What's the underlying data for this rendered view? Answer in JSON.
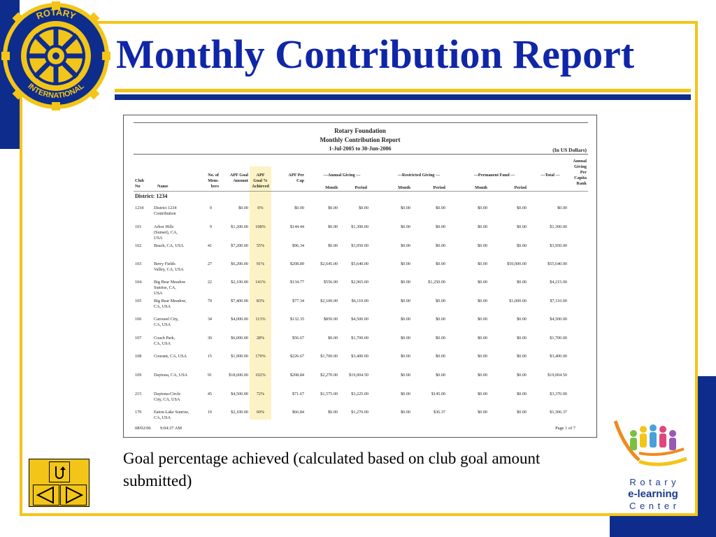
{
  "title": "Monthly Contribution Report",
  "logo_top_text": "ROTARY",
  "logo_bottom_text": "INTERNATIONAL",
  "report": {
    "org": "Rotary Foundation",
    "name": "Monthly Contribution Report",
    "period": "1-Jul-2005 to 30-Jun-2006",
    "currency": "(In US Dollars)",
    "headers": {
      "club_no": "Club\nNo",
      "name": "Name",
      "members": "No. of\nMem-\nbers",
      "goal_amount": "APF Goal\nAmount",
      "goal_pct": "APF\nGoal %\nAchieved",
      "per_cap": "APF Per\nCap",
      "annual_giving": "---Annual Giving ---",
      "restricted_giving": "---Restricted Giving ---",
      "permanent_fund": "---Permanent Fund ---",
      "total": "---Total ---",
      "rank": "Annual\nGiving\nPer\nCapita\nRank",
      "month": "Month",
      "period": "Period"
    },
    "district": "District: 1234",
    "rows": [
      {
        "no": "1234",
        "name": "District 1234\nContribution",
        "members": "0",
        "goal": "$0.00",
        "pct": "0%",
        "percap": "$0.00",
        "ag_m": "$0.00",
        "ag_p": "$0.00",
        "rg_m": "$0.00",
        "rg_p": "$0.00",
        "pf_m": "$0.00",
        "pf_p": "$0.00",
        "total": "$0.00"
      },
      {
        "no": "101",
        "name": "Arbor Hills\n(Sunset), CA,\nUSA",
        "members": "9",
        "goal": "$1,200.00",
        "pct": "108%",
        "percap": "$144.44",
        "ag_m": "$0.00",
        "ag_p": "$1,300.00",
        "rg_m": "$0.00",
        "rg_p": "$0.00",
        "pf_m": "$0.00",
        "pf_p": "$0.00",
        "total": "$1,300.00"
      },
      {
        "no": "102",
        "name": "Beach, CA, USA",
        "members": "41",
        "goal": "$7,200.00",
        "pct": "55%",
        "percap": "$96.34",
        "ag_m": "$0.00",
        "ag_p": "$3,950.00",
        "rg_m": "$0.00",
        "rg_p": "$0.00",
        "pf_m": "$0.00",
        "pf_p": "$0.00",
        "total": "$3,950.00"
      },
      {
        "no": "103",
        "name": "Berry Fields\nValley, CA, USA",
        "members": "27",
        "goal": "$6,200.00",
        "pct": "91%",
        "percap": "$208.89",
        "ag_m": "$2,645.00",
        "ag_p": "$5,640.00",
        "rg_m": "$0.00",
        "rg_p": "$0.00",
        "pf_m": "$0.00",
        "pf_p": "$50,000.00",
        "total": "$55,640.00"
      },
      {
        "no": "104",
        "name": "Big Bear Meadow\nSunrise, CA,\nUSA",
        "members": "22",
        "goal": "$2,100.00",
        "pct": "141%",
        "percap": "$134.77",
        "ag_m": "$556.00",
        "ag_p": "$2,965.00",
        "rg_m": "$0.00",
        "rg_p": "$1,250.00",
        "pf_m": "$0.00",
        "pf_p": "$0.00",
        "total": "$4,215.00"
      },
      {
        "no": "105",
        "name": "Big Bear Meadow,\nCA, USA",
        "members": "79",
        "goal": "$7,400.00",
        "pct": "83%",
        "percap": "$77.34",
        "ag_m": "$2,100.00",
        "ag_p": "$6,110.00",
        "rg_m": "$0.00",
        "rg_p": "$0.00",
        "pf_m": "$0.00",
        "pf_p": "$1,000.00",
        "total": "$7,110.00"
      },
      {
        "no": "106",
        "name": "Carousel City,\nCA, USA",
        "members": "34",
        "goal": "$4,000.00",
        "pct": "113%",
        "percap": "$132.35",
        "ag_m": "$850.00",
        "ag_p": "$4,500.00",
        "rg_m": "$0.00",
        "rg_p": "$0.00",
        "pf_m": "$0.00",
        "pf_p": "$0.00",
        "total": "$4,500.00"
      },
      {
        "no": "107",
        "name": "Coach Park,\nCA, USA",
        "members": "30",
        "goal": "$6,000.00",
        "pct": "28%",
        "percap": "$56.67",
        "ag_m": "$0.00",
        "ag_p": "$1,700.00",
        "rg_m": "$0.00",
        "rg_p": "$0.00",
        "pf_m": "$0.00",
        "pf_p": "$0.00",
        "total": "$1,700.00"
      },
      {
        "no": "108",
        "name": "Courant, CA, USA",
        "members": "15",
        "goal": "$1,900.00",
        "pct": "179%",
        "percap": "$226.67",
        "ag_m": "$1,700.00",
        "ag_p": "$3,400.00",
        "rg_m": "$0.00",
        "rg_p": "$0.00",
        "pf_m": "$0.00",
        "pf_p": "$0.00",
        "total": "$3,400.00"
      },
      {
        "no": "109",
        "name": "Daytona, CA, USA",
        "members": "91",
        "goal": "$18,600.00",
        "pct": "102%",
        "percap": "$208.84",
        "ag_m": "$2,270.00",
        "ag_p": "$19,004.50",
        "rg_m": "$0.00",
        "rg_p": "$0.00",
        "pf_m": "$0.00",
        "pf_p": "$0.00",
        "total": "$19,004.50"
      },
      {
        "no": "215",
        "name": "Daytona-Circle\nCity, CA, USA",
        "members": "45",
        "goal": "$4,500.00",
        "pct": "72%",
        "percap": "$71.67",
        "ag_m": "$1,575.00",
        "ag_p": "$3,225.00",
        "rg_m": "$0.00",
        "rg_p": "$145.00",
        "pf_m": "$0.00",
        "pf_p": "$0.00",
        "total": "$3,370.00"
      },
      {
        "no": "170",
        "name": "Eaton-Lake Sunrise,\nCA, USA",
        "members": "19",
        "goal": "$2,100.00",
        "pct": "60%",
        "percap": "$66.84",
        "ag_m": "$0.00",
        "ag_p": "$1,270.00",
        "rg_m": "$0.00",
        "rg_p": "$36.37",
        "pf_m": "$0.00",
        "pf_p": "$0.00",
        "total": "$1,306.37"
      }
    ],
    "footer_date": "08/02/06",
    "footer_time": "9:04:37 AM",
    "footer_page": "Page 1 of 7"
  },
  "caption": "Goal percentage achieved (calculated based on club goal amount submitted)",
  "nav": {
    "return_icon": "return-arrow-icon",
    "prev_icon": "triangle-left-icon",
    "next_icon": "triangle-right-icon"
  },
  "elearning": {
    "line1": "R o t a r y",
    "line2": "e-learning",
    "line3": "C e n t e r"
  },
  "colors": {
    "navy": "#0d2c8c",
    "gold": "#f2c518",
    "title_blue": "#1026a8",
    "highlight": "#fbf3c5"
  }
}
